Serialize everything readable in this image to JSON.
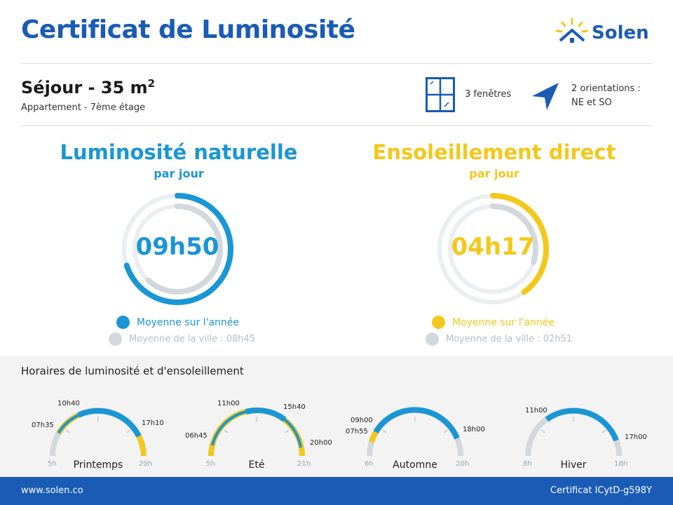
{
  "header": {
    "title": "Certificat de Luminosité",
    "logo_text": "Solen"
  },
  "room": {
    "title": "Séjour - 35 m",
    "title_sup": "2",
    "subtitle": "Appartement - 7ème étage",
    "windows_text": "3 fenêtres",
    "orientation_line1": "2 orientations :",
    "orientation_line2": "NE et SO"
  },
  "natural": {
    "title": "Luminosité naturelle",
    "subtitle": "par jour",
    "value": "09h50",
    "legend_main": "Moyenne sur l'année",
    "legend_city": "Moyenne de la ville : 08h45",
    "color": "#1a96d4",
    "value_fraction": 0.7,
    "city_fraction": 0.62
  },
  "sun": {
    "title": "Ensoleillement direct",
    "subtitle": "par jour",
    "value": "04h17",
    "legend_main": "Moyenne sur l'année",
    "legend_city": "Moyenne de la ville : 02h51",
    "color": "#f3c81b",
    "value_fraction": 0.4,
    "city_fraction": 0.3
  },
  "schedule": {
    "title": "Horaires de luminosité et d'ensoleillement",
    "seasons": [
      {
        "name": "Printemps",
        "start": "5h",
        "end": "20h",
        "labels": [
          "07h35",
          "10h40",
          "17h10"
        ]
      },
      {
        "name": "Eté",
        "start": "5h",
        "end": "21h",
        "labels": [
          "06h45",
          "11h00",
          "15h40",
          "20h00"
        ]
      },
      {
        "name": "Automne",
        "start": "6h",
        "end": "20h",
        "labels": [
          "09h00",
          "07h55",
          "18h00"
        ]
      },
      {
        "name": "Hiver",
        "start": "8h",
        "end": "18h",
        "labels": [
          "11h00",
          "17h00"
        ]
      }
    ]
  },
  "footer": {
    "website": "www.solen.co",
    "certificate": "Certificat ICytD-g598Y"
  },
  "colors": {
    "brand": "#1a5bb5",
    "light_blue": "#1a96d4",
    "yellow": "#f3c81b",
    "grey": "#d3d8dd"
  }
}
